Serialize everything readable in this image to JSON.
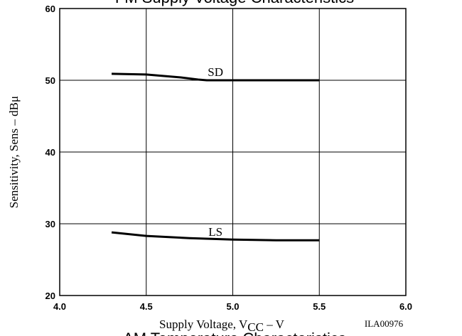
{
  "chart_data": {
    "type": "line",
    "title": "FM Supply Voltage Characteristics",
    "next_title": "AM Temperature Characteristics",
    "y_label": "Sensitivity, Sens – dBμ",
    "x_label": [
      "Supply Voltage, V",
      "CC",
      " – V"
    ],
    "code": "ILA00976",
    "xlim": [
      4.0,
      6.0
    ],
    "ylim": [
      20,
      60
    ],
    "xticks": [
      {
        "value": 4.0,
        "label": "4.0"
      },
      {
        "value": 4.5,
        "label": "4.5"
      },
      {
        "value": 5.0,
        "label": "5.0"
      },
      {
        "value": 5.5,
        "label": "5.5"
      },
      {
        "value": 6.0,
        "label": "6.0"
      }
    ],
    "yticks": [
      20,
      30,
      40,
      50,
      60
    ],
    "grid": true,
    "series": [
      {
        "name": "SD",
        "color": "#000000",
        "x": [
          4.3,
          4.5,
          4.7,
          4.8,
          4.85,
          5.0,
          5.5
        ],
        "values": [
          50.9,
          50.8,
          50.4,
          50.1,
          50.0,
          50.0,
          50.0
        ]
      },
      {
        "name": "LS",
        "color": "#000000",
        "x": [
          4.3,
          4.5,
          4.75,
          5.0,
          5.25,
          5.5
        ],
        "values": [
          28.8,
          28.3,
          28.0,
          27.8,
          27.7,
          27.7
        ]
      }
    ]
  }
}
